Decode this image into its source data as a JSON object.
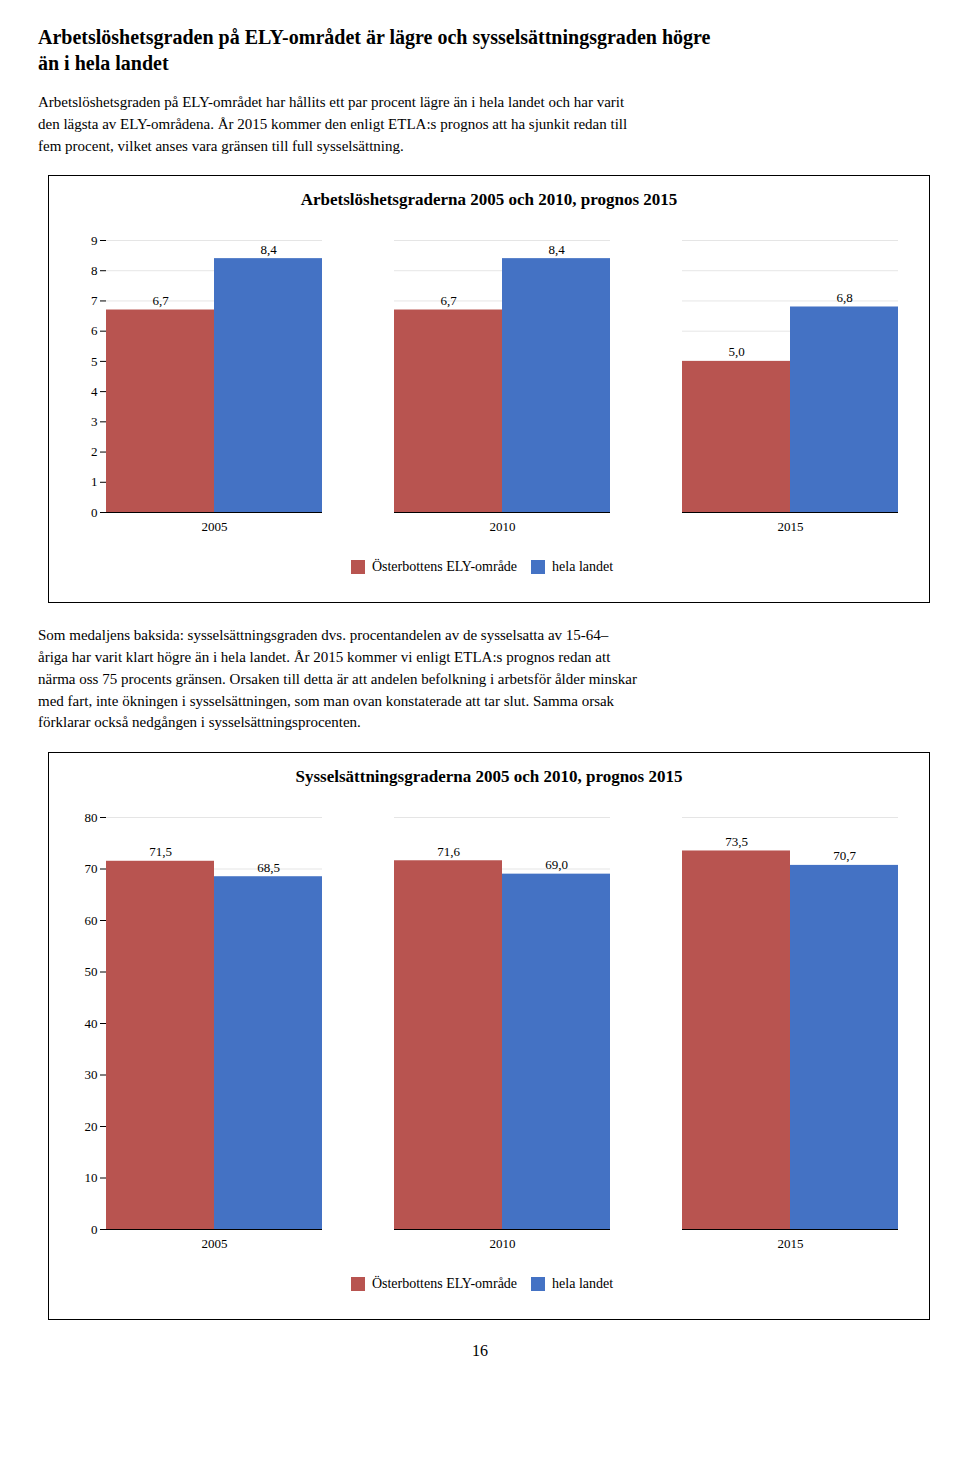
{
  "page": {
    "title_lines": [
      "Arbetslöshetsgraden på ELY-området är lägre och sysselsättningsgraden högre",
      "än i hela landet"
    ],
    "paragraphs": [
      [
        "Arbetslöshetsgraden på ELY-området har hållits ett par procent lägre än i hela landet och har varit",
        "den lägsta av ELY-områdena. År 2015 kommer den enligt ETLA:s prognos att ha sjunkit redan till",
        "fem procent, vilket anses vara gränsen till full sysselsättning."
      ],
      [
        "Som medaljens baksida: sysselsättningsgraden  dvs. procentandelen av de sysselsatta av 15-64–",
        "åriga har varit klart högre än i hela landet. År 2015 kommer vi enligt ETLA:s prognos redan att",
        "närma oss 75 procents gränsen. Orsaken till detta är att andelen befolkning i arbetsför ålder minskar",
        "med fart, inte ökningen i sysselsättningen, som man ovan konstaterade att tar slut. Samma orsak",
        "förklarar också nedgången i sysselsättningsprocenten."
      ]
    ],
    "page_number": "16"
  },
  "chart_data": [
    {
      "type": "bar",
      "title": "Arbetslöshetsgraderna 2005 och 2010, prognos 2015",
      "categories": [
        "2005",
        "2010",
        "2015"
      ],
      "series": [
        {
          "name": "Österbottens ELY-område",
          "color": "#B85450",
          "values": [
            6.7,
            6.7,
            5.0
          ],
          "value_labels": [
            "6,7",
            "6,7",
            "5,0"
          ]
        },
        {
          "name": "hela landet",
          "color": "#4472C4",
          "values": [
            8.4,
            8.4,
            6.8
          ],
          "value_labels": [
            "8,4",
            "8,4",
            "6,8"
          ]
        }
      ],
      "ylim": [
        0,
        9
      ],
      "yticks": [
        0,
        1,
        2,
        3,
        4,
        5,
        6,
        7,
        8,
        9
      ],
      "grid": true,
      "data_labels": true,
      "legend": "bottom"
    },
    {
      "type": "bar",
      "title": "Sysselsättningsgraderna 2005 och 2010, prognos 2015",
      "categories": [
        "2005",
        "2010",
        "2015"
      ],
      "series": [
        {
          "name": "Österbottens ELY-område",
          "color": "#B85450",
          "values": [
            71.5,
            71.6,
            73.5
          ],
          "value_labels": [
            "71,5",
            "71,6",
            "73,5"
          ]
        },
        {
          "name": "hela landet",
          "color": "#4472C4",
          "values": [
            68.5,
            69.0,
            70.7
          ],
          "value_labels": [
            "68,5",
            "69,0",
            "70,7"
          ]
        }
      ],
      "ylim": [
        0,
        80
      ],
      "yticks": [
        0,
        10,
        20,
        30,
        40,
        50,
        60,
        70,
        80
      ],
      "grid": true,
      "data_labels": true,
      "legend": "bottom"
    }
  ]
}
